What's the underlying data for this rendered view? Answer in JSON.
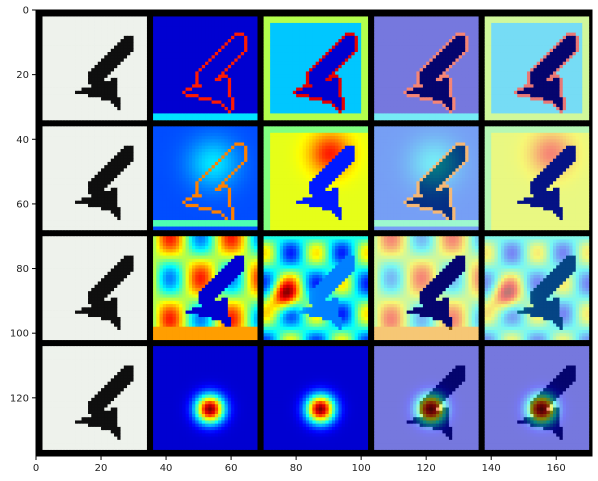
{
  "chart_data": {
    "type": "heatmap",
    "title": "",
    "xlabel": "",
    "ylabel": "",
    "xlim": [
      0,
      171
    ],
    "ylim": [
      138,
      0
    ],
    "xticks": [
      0,
      20,
      40,
      60,
      80,
      100,
      120,
      140,
      160
    ],
    "yticks": [
      0,
      20,
      40,
      60,
      80,
      100,
      120
    ],
    "x_tick_labels": [
      "0",
      "20",
      "40",
      "60",
      "80",
      "100",
      "120",
      "140",
      "160"
    ],
    "y_tick_labels": [
      "0",
      "20",
      "40",
      "60",
      "80",
      "100",
      "120"
    ],
    "grid": false,
    "colormap": "jet",
    "layout": {
      "rows": 4,
      "cols": 5,
      "tile_size": 32,
      "separator": 2,
      "separator_color": "#000000"
    },
    "columns": [
      "input",
      "activation",
      "activation",
      "overlay",
      "overlay"
    ],
    "rows": [
      {
        "row": 0,
        "activation_a": {
          "peak": [
            16,
            14
          ],
          "level": 0.15,
          "pattern": "edges"
        },
        "activation_b": {
          "peak": [
            16,
            16
          ],
          "level": 0.35,
          "pattern": "edges-strong"
        }
      },
      {
        "row": 1,
        "activation_a": {
          "peak": [
            18,
            11
          ],
          "level": 0.2,
          "pattern": "sparse"
        },
        "activation_b": {
          "peak": [
            20,
            8
          ],
          "level": 0.6,
          "pattern": "warm"
        }
      },
      {
        "row": 2,
        "activation_a": {
          "peak": [
            8,
            10
          ],
          "level": 0.7,
          "pattern": "hot-border"
        },
        "activation_b": {
          "peak": [
            6,
            18
          ],
          "level": 0.5,
          "pattern": "mixed"
        }
      },
      {
        "row": 3,
        "activation_a": {
          "peak": [
            17,
            19
          ],
          "level": 0.1,
          "pattern": "blob"
        },
        "activation_b": {
          "peak": [
            17,
            19
          ],
          "level": 0.1,
          "pattern": "blob"
        }
      }
    ]
  }
}
